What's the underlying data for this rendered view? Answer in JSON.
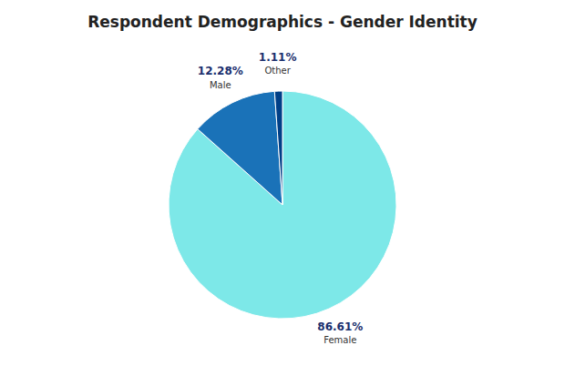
{
  "chart_data": {
    "type": "pie",
    "title": "Respondent Demographics - Gender Identity",
    "categories": [
      "Female",
      "Male",
      "Other"
    ],
    "values": [
      86.61,
      12.28,
      1.11
    ],
    "value_labels": [
      "86.61%",
      "12.28%",
      "1.11%"
    ],
    "data_labels": true,
    "colors": [
      "#7de8e8",
      "#1a72b8",
      "#003f87"
    ]
  }
}
